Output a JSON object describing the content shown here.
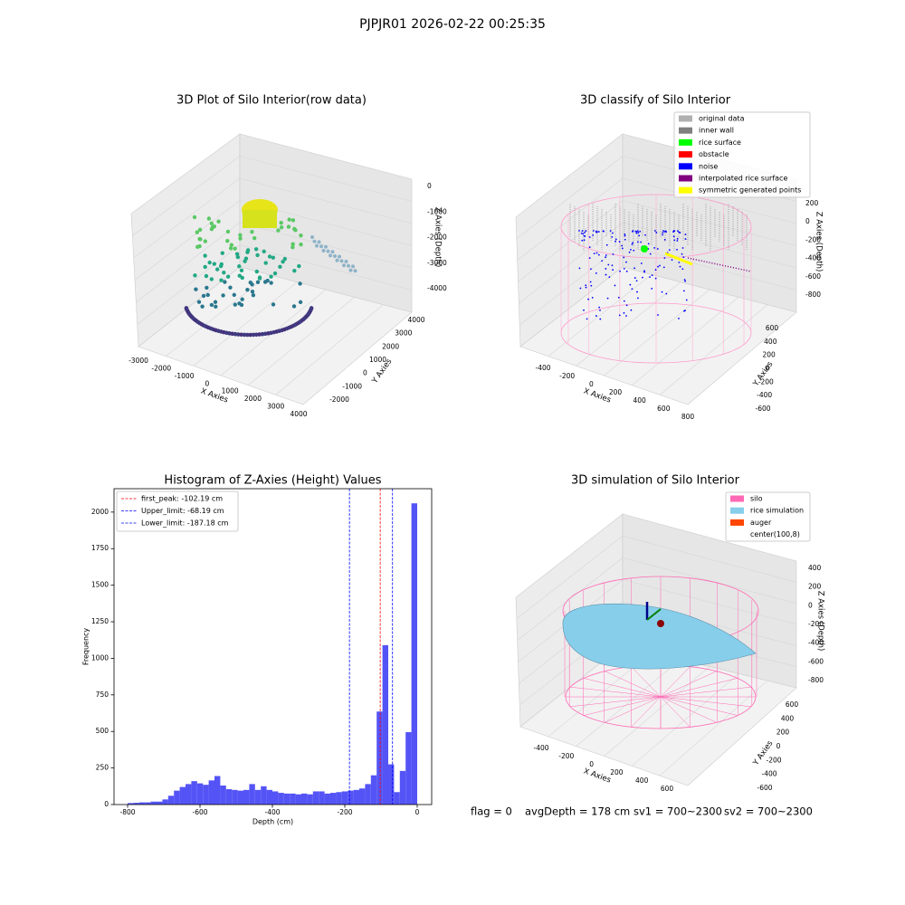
{
  "title": "PJPJR01 2026-02-22 00:25:35",
  "chart_data": [
    {
      "type": "scatter3d",
      "title": "3D Plot of Silo Interior(row data)",
      "xlabel": "X Axies",
      "ylabel": "Y Axies",
      "zlabel": "Z Axies (Depth)",
      "xticks": [
        -3000,
        -2000,
        -1000,
        0,
        1000,
        2000,
        3000,
        4000
      ],
      "yticks": [
        -2000,
        -1000,
        0,
        1000,
        2000,
        3000,
        4000
      ],
      "zticks": [
        0,
        -1000,
        -2000,
        -3000,
        -4000
      ]
    },
    {
      "type": "scatter3d",
      "title": "3D classify of Silo Interior",
      "xlabel": "X Axies",
      "ylabel": "Y Axies",
      "zlabel": "Z Axies (Depth)",
      "xticks": [
        -400,
        -200,
        0,
        200,
        400,
        600,
        800
      ],
      "yticks": [
        -600,
        -400,
        -200,
        0,
        200,
        400,
        600
      ],
      "zticks": [
        200,
        0,
        -200,
        -400,
        -600,
        -800
      ],
      "legend": [
        {
          "name": "original data",
          "color": "#b0b0b0"
        },
        {
          "name": "inner wall",
          "color": "#808080"
        },
        {
          "name": "rice surface",
          "color": "#00ff00"
        },
        {
          "name": "obstacle",
          "color": "#ff0000"
        },
        {
          "name": "noise",
          "color": "#0000ff"
        },
        {
          "name": "interpolated rice surface",
          "color": "#800080"
        },
        {
          "name": "symmetric generated points",
          "color": "#ffff00"
        }
      ]
    },
    {
      "type": "histogram",
      "title": "Histogram of Z-Axies (Height) Values",
      "xlabel": "Depth (cm)",
      "ylabel": "Frequency",
      "color": "#4b4bf5",
      "bins": [
        -800,
        -784,
        -768,
        -752,
        -736,
        -720,
        -704,
        -688,
        -672,
        -656,
        -640,
        -624,
        -608,
        -592,
        -576,
        -560,
        -544,
        -528,
        -512,
        -496,
        -480,
        -464,
        -448,
        -432,
        -416,
        -400,
        -384,
        -368,
        -352,
        -336,
        -320,
        -304,
        -288,
        -272,
        -256,
        -240,
        -224,
        -208,
        -192,
        -176,
        -160,
        -144,
        -128,
        -112,
        -96,
        -80,
        -64,
        -48,
        -32,
        -16,
        0
      ],
      "counts": [
        10,
        12,
        15,
        15,
        20,
        20,
        35,
        60,
        95,
        120,
        140,
        160,
        145,
        135,
        165,
        195,
        130,
        105,
        100,
        95,
        100,
        140,
        100,
        125,
        100,
        90,
        80,
        75,
        75,
        70,
        75,
        70,
        90,
        90,
        75,
        80,
        85,
        90,
        95,
        100,
        110,
        140,
        200,
        636,
        1090,
        275,
        85,
        230,
        495,
        2060
      ],
      "xlim": [
        -837.5,
        40
      ],
      "ylim": [
        0,
        2160
      ],
      "xticks": [
        -800,
        -600,
        -400,
        -200,
        0
      ],
      "yticks": [
        0,
        250,
        500,
        750,
        1000,
        1250,
        1500,
        1750,
        2000
      ],
      "lines": [
        {
          "name": "first_peak: -102.19 cm",
          "value": -102.19,
          "color": "#ff0000"
        },
        {
          "name": "Upper_limit: -68.19 cm",
          "value": -68.19,
          "color": "#0000ff"
        },
        {
          "name": "Lower_limit: -187.18 cm",
          "value": -187.18,
          "color": "#0000ff"
        }
      ],
      "legend_position": "upper left"
    },
    {
      "type": "surface3d",
      "title": "3D simulation of Silo Interior",
      "xlabel": "X Axies",
      "ylabel": "Y Axies",
      "zlabel": "Z Axies (Depth)",
      "xticks": [
        -400,
        -200,
        0,
        200,
        400,
        600
      ],
      "yticks": [
        -600,
        -400,
        -200,
        0,
        200,
        400,
        600
      ],
      "zticks": [
        400,
        200,
        0,
        -200,
        -400,
        -600,
        -800
      ],
      "legend": [
        {
          "name": "silo",
          "color": "#ff69b4"
        },
        {
          "name": "rice simulation",
          "color": "#87ceeb"
        },
        {
          "name": "auger",
          "color": "#ff4500"
        },
        {
          "name": "center(100,8)",
          "color": "#ffffff"
        }
      ]
    }
  ],
  "footer": [
    "flag = 0",
    "avgDepth = 178 cm",
    "sv1 = 700~2300",
    "sv2 = 700~2300"
  ]
}
